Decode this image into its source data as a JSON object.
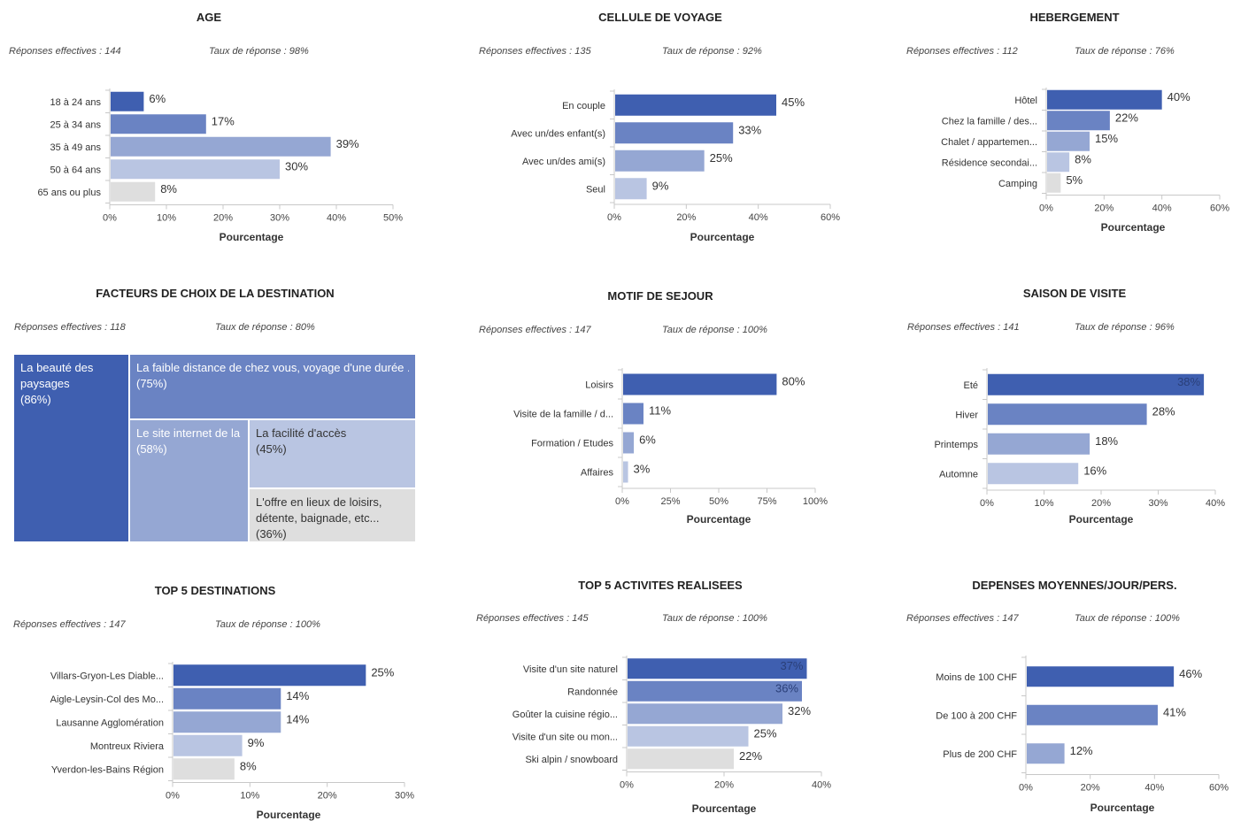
{
  "colors": [
    "#3f5fb0",
    "#6a83c3",
    "#95a7d3",
    "#b9c5e2",
    "#dedede"
  ],
  "text_dark": "#333333",
  "panels": [
    {
      "id": "age",
      "title": "AGE",
      "responses": "Réponses effectives : 144",
      "rate": "Taux de réponse : 98%",
      "chart_data": {
        "type": "bar",
        "orientation": "horizontal",
        "categories": [
          "18 à 24 ans",
          "25 à 34 ans",
          "35 à 49 ans",
          "50 à 64 ans",
          "65 ans ou plus"
        ],
        "values": [
          6,
          17,
          39,
          30,
          8
        ],
        "value_labels": [
          "6%",
          "17%",
          "39%",
          "30%",
          "8%"
        ],
        "xlabel": "Pourcentage",
        "xlim": [
          0,
          50
        ],
        "xticks": [
          "0%",
          "10%",
          "20%",
          "30%",
          "40%",
          "50%"
        ]
      }
    },
    {
      "id": "cellule",
      "title": "CELLULE DE VOYAGE",
      "responses": "Réponses effectives : 135",
      "rate": "Taux de réponse : 92%",
      "chart_data": {
        "type": "bar",
        "orientation": "horizontal",
        "categories": [
          "En couple",
          "Avec un/des enfant(s)",
          "Avec un/des ami(s)",
          "Seul"
        ],
        "values": [
          45,
          33,
          25,
          9
        ],
        "value_labels": [
          "45%",
          "33%",
          "25%",
          "9%"
        ],
        "xlabel": "Pourcentage",
        "xlim": [
          0,
          60
        ],
        "xticks": [
          "0%",
          "20%",
          "40%",
          "60%"
        ]
      }
    },
    {
      "id": "hebergement",
      "title": "HEBERGEMENT",
      "responses": "Réponses effectives : 112",
      "rate": "Taux de réponse : 76%",
      "chart_data": {
        "type": "bar",
        "orientation": "horizontal",
        "categories": [
          "Hôtel",
          "Chez la famille / des...",
          "Chalet / appartemen...",
          "Résidence secondai...",
          "Camping"
        ],
        "values": [
          40,
          22,
          15,
          8,
          5
        ],
        "value_labels": [
          "40%",
          "22%",
          "15%",
          "8%",
          "5%"
        ],
        "xlabel": "Pourcentage",
        "xlim": [
          0,
          60
        ],
        "xticks": [
          "0%",
          "20%",
          "40%",
          "60%"
        ]
      }
    },
    {
      "id": "facteurs",
      "title": "FACTEURS DE CHOIX DE LA DESTINATION",
      "responses": "Réponses effectives : 118",
      "rate": "Taux de réponse : 80%",
      "chart_data": {
        "type": "treemap",
        "items": [
          {
            "label": "La beauté des paysages",
            "value": 86,
            "value_label": "(86%)"
          },
          {
            "label": "La faible distance de chez vous, voyage d'une durée ...",
            "value": 75,
            "value_label": "(75%)"
          },
          {
            "label": "Le site internet de la",
            "value": 58,
            "value_label": "(58%)"
          },
          {
            "label": "La facilité d'accès",
            "value": 45,
            "value_label": "(45%)"
          },
          {
            "label": "L'offre en lieux de loisirs, détente, baignade, etc...",
            "value": 36,
            "value_label": "(36%)"
          }
        ]
      }
    },
    {
      "id": "motif",
      "title": "MOTIF DE SEJOUR",
      "responses": "Réponses effectives : 147",
      "rate": "Taux de réponse : 100%",
      "chart_data": {
        "type": "bar",
        "orientation": "horizontal",
        "categories": [
          "Loisirs",
          "Visite de la famille / d...",
          "Formation / Etudes",
          "Affaires"
        ],
        "values": [
          80,
          11,
          6,
          3
        ],
        "value_labels": [
          "80%",
          "11%",
          "6%",
          "3%"
        ],
        "xlabel": "Pourcentage",
        "xlim": [
          0,
          100
        ],
        "xticks": [
          "0%",
          "25%",
          "50%",
          "75%",
          "100%"
        ]
      }
    },
    {
      "id": "saison",
      "title": "SAISON DE VISITE",
      "responses": "Réponses effectives : 141",
      "rate": "Taux de réponse : 96%",
      "chart_data": {
        "type": "bar",
        "orientation": "horizontal",
        "categories": [
          "Eté",
          "Hiver",
          "Printemps",
          "Automne"
        ],
        "values": [
          38,
          28,
          18,
          16
        ],
        "value_labels": [
          "38%",
          "28%",
          "18%",
          "16%"
        ],
        "xlabel": "Pourcentage",
        "xlim": [
          0,
          40
        ],
        "xticks": [
          "0%",
          "10%",
          "20%",
          "30%",
          "40%"
        ]
      }
    },
    {
      "id": "destinations",
      "title": "TOP 5 DESTINATIONS",
      "responses": "Réponses effectives : 147",
      "rate": "Taux de réponse : 100%",
      "chart_data": {
        "type": "bar",
        "orientation": "horizontal",
        "categories": [
          "Villars-Gryon-Les Diable...",
          "Aigle-Leysin-Col des Mo...",
          "Lausanne Agglomération",
          "Montreux Riviera",
          "Yverdon-les-Bains Région"
        ],
        "values": [
          25,
          14,
          14,
          9,
          8
        ],
        "value_labels": [
          "25%",
          "14%",
          "14%",
          "9%",
          "8%"
        ],
        "xlabel": "Pourcentage",
        "xlim": [
          0,
          30
        ],
        "xticks": [
          "0%",
          "10%",
          "20%",
          "30%"
        ]
      }
    },
    {
      "id": "activites",
      "title": "TOP 5 ACTIVITES REALISEES",
      "responses": "Réponses effectives : 145",
      "rate": "Taux de réponse : 100%",
      "chart_data": {
        "type": "bar",
        "orientation": "horizontal",
        "categories": [
          "Visite d'un site naturel",
          "Randonnée",
          "Goûter la cuisine régio...",
          "Visite d'un site ou mon...",
          "Ski alpin / snowboard"
        ],
        "values": [
          37,
          36,
          32,
          25,
          22
        ],
        "value_labels": [
          "37%",
          "36%",
          "32%",
          "25%",
          "22%"
        ],
        "xlabel": "Pourcentage",
        "xlim": [
          0,
          40
        ],
        "xticks": [
          "0%",
          "20%",
          "40%"
        ]
      }
    },
    {
      "id": "depenses",
      "title": "DEPENSES MOYENNES/JOUR/PERS.",
      "responses": "Réponses effectives : 147",
      "rate": "Taux de réponse : 100%",
      "chart_data": {
        "type": "bar",
        "orientation": "horizontal",
        "categories": [
          "Moins de 100 CHF",
          "De 100 à 200 CHF",
          "Plus de 200 CHF"
        ],
        "values": [
          46,
          41,
          12
        ],
        "value_labels": [
          "46%",
          "41%",
          "12%"
        ],
        "xlabel": "Pourcentage",
        "xlim": [
          0,
          60
        ],
        "xticks": [
          "0%",
          "20%",
          "40%",
          "60%"
        ]
      }
    }
  ]
}
